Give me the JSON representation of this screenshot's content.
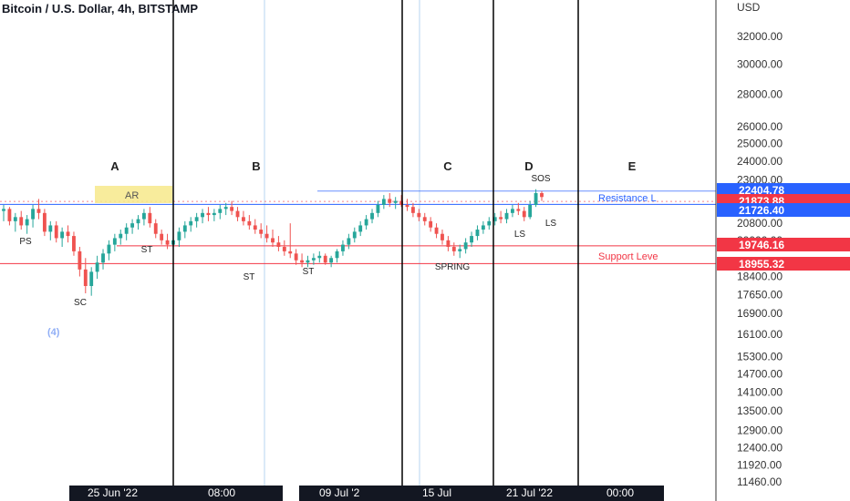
{
  "header": {
    "title": "Bitcoin / U.S. Dollar, 4h, BITSTAMP"
  },
  "colors": {
    "up": "#26a69a",
    "down": "#ef5350",
    "resistance": "#2962ff",
    "support": "#f23645",
    "ar_box": "#f7e98b",
    "label": "#222222",
    "price_text": "#333333"
  },
  "chart_data": {
    "type": "candlestick",
    "title": "Bitcoin / U.S. Dollar, 4h, BITSTAMP",
    "price_axis": {
      "unit_label": "USD",
      "scale": "log",
      "ticks": [
        "32000.00",
        "30000.00",
        "28000.00",
        "26000.00",
        "25000.00",
        "24000.00",
        "23000.00",
        "20800.00",
        "20000.00",
        "18400.00",
        "17650.00",
        "16900.00",
        "16100.00",
        "15300.00",
        "14700.00",
        "14100.00",
        "13500.00",
        "12900.00",
        "12400.00",
        "11920.00",
        "11460.00"
      ]
    },
    "time_axis": {
      "labels": [
        "25 Jun '22",
        "08:00",
        "09 Jul '2",
        "15 Jul",
        "21 Jul '22",
        "00:00"
      ]
    },
    "phases": [
      "A",
      "B",
      "C",
      "D",
      "E"
    ],
    "wyckoff_labels": [
      "PS",
      "SC",
      "AR",
      "ST",
      "ST",
      "ST",
      "SPRING",
      "LS",
      "LS",
      "SOS"
    ],
    "annotation": "(4)",
    "levels": [
      {
        "name": "Resistance L",
        "price": 21726.4
      },
      {
        "name": "Support Leve",
        "price": 18955.32
      }
    ],
    "price_tags": [
      {
        "value": "22404.78",
        "color": "#2962ff"
      },
      {
        "value": "21873.88",
        "color": "#f23645"
      },
      {
        "value": "21726.40",
        "color": "#2962ff"
      },
      {
        "value": "19746.16",
        "color": "#f23645"
      },
      {
        "value": "18955.32",
        "color": "#f23645"
      }
    ],
    "candles": [
      [
        21400,
        21700,
        20900,
        21500
      ],
      [
        21500,
        21600,
        20700,
        20900
      ],
      [
        20900,
        21300,
        20400,
        21100
      ],
      [
        21100,
        21400,
        20500,
        20700
      ],
      [
        20700,
        21200,
        20300,
        21000
      ],
      [
        21000,
        21700,
        20600,
        21500
      ],
      [
        21500,
        22000,
        21000,
        21300
      ],
      [
        21300,
        21500,
        20200,
        20400
      ],
      [
        20400,
        20900,
        20000,
        20700
      ],
      [
        20700,
        20900,
        19900,
        20100
      ],
      [
        20100,
        20600,
        19700,
        20400
      ],
      [
        20400,
        20700,
        19900,
        20200
      ],
      [
        20200,
        20400,
        19300,
        19500
      ],
      [
        19500,
        19700,
        18400,
        18700
      ],
      [
        18700,
        19200,
        17700,
        18000
      ],
      [
        18000,
        18800,
        17600,
        18600
      ],
      [
        18600,
        19300,
        18300,
        19000
      ],
      [
        19000,
        19600,
        18700,
        19400
      ],
      [
        19400,
        20000,
        19100,
        19800
      ],
      [
        19800,
        20300,
        19500,
        20100
      ],
      [
        20100,
        20500,
        19800,
        20300
      ],
      [
        20300,
        20800,
        20000,
        20600
      ],
      [
        20600,
        21000,
        20300,
        20800
      ],
      [
        20800,
        21200,
        20500,
        21000
      ],
      [
        21000,
        21500,
        20700,
        21300
      ],
      [
        21300,
        21600,
        20600,
        20800
      ],
      [
        20800,
        21000,
        20100,
        20300
      ],
      [
        20300,
        20500,
        19800,
        20000
      ],
      [
        20000,
        20300,
        19600,
        19800
      ],
      [
        19800,
        20200,
        19500,
        20000
      ],
      [
        20000,
        20600,
        19700,
        20400
      ],
      [
        20400,
        20900,
        20100,
        20700
      ],
      [
        20700,
        21100,
        20400,
        20900
      ],
      [
        20900,
        21300,
        20600,
        21100
      ],
      [
        21100,
        21500,
        20800,
        21300
      ],
      [
        21300,
        21600,
        20900,
        21200
      ],
      [
        21200,
        21500,
        20900,
        21300
      ],
      [
        21300,
        21700,
        21000,
        21500
      ],
      [
        21500,
        21800,
        21200,
        21600
      ],
      [
        21600,
        21900,
        21200,
        21400
      ],
      [
        21400,
        21600,
        20900,
        21100
      ],
      [
        21100,
        21400,
        20700,
        20900
      ],
      [
        20900,
        21200,
        20500,
        20700
      ],
      [
        20700,
        21000,
        20300,
        20500
      ],
      [
        20500,
        20800,
        20100,
        20300
      ],
      [
        20300,
        20700,
        19900,
        20100
      ],
      [
        20100,
        20500,
        19700,
        19900
      ],
      [
        19900,
        20200,
        19500,
        19700
      ],
      [
        19700,
        20000,
        19300,
        19500
      ],
      [
        19500,
        20800,
        19200,
        19400
      ],
      [
        19400,
        19600,
        18900,
        19100
      ],
      [
        19100,
        19400,
        18800,
        19000
      ],
      [
        19000,
        19300,
        18800,
        19100
      ],
      [
        19100,
        19400,
        18900,
        19200
      ],
      [
        19200,
        19500,
        19000,
        19300
      ],
      [
        19300,
        19400,
        18900,
        19000
      ],
      [
        19000,
        19300,
        18800,
        19200
      ],
      [
        19200,
        19600,
        19000,
        19500
      ],
      [
        19500,
        20000,
        19300,
        19800
      ],
      [
        19800,
        20300,
        19600,
        20100
      ],
      [
        20100,
        20600,
        19900,
        20400
      ],
      [
        20400,
        20900,
        20200,
        20700
      ],
      [
        20700,
        21200,
        20500,
        21000
      ],
      [
        21000,
        21500,
        20800,
        21300
      ],
      [
        21300,
        21900,
        21100,
        21700
      ],
      [
        21700,
        22200,
        21500,
        22000
      ],
      [
        22000,
        22300,
        21600,
        21800
      ],
      [
        21800,
        22100,
        21500,
        21900
      ],
      [
        21900,
        22200,
        21600,
        21700
      ],
      [
        21700,
        22000,
        21400,
        21600
      ],
      [
        21600,
        21800,
        21100,
        21300
      ],
      [
        21300,
        21500,
        20900,
        21100
      ],
      [
        21100,
        21300,
        20700,
        20900
      ],
      [
        20900,
        21100,
        20400,
        20600
      ],
      [
        20600,
        20800,
        20100,
        20300
      ],
      [
        20300,
        20500,
        19800,
        20000
      ],
      [
        20000,
        20200,
        19500,
        19700
      ],
      [
        19700,
        19900,
        19300,
        19500
      ],
      [
        19500,
        19800,
        19200,
        19600
      ],
      [
        19600,
        20100,
        19400,
        19900
      ],
      [
        19900,
        20400,
        19700,
        20200
      ],
      [
        20200,
        20700,
        20000,
        20500
      ],
      [
        20500,
        20900,
        20300,
        20700
      ],
      [
        20700,
        21100,
        20500,
        20900
      ],
      [
        20900,
        21300,
        20700,
        21100
      ],
      [
        21100,
        21400,
        20800,
        21000
      ],
      [
        21000,
        21500,
        20800,
        21300
      ],
      [
        21300,
        21700,
        21100,
        21500
      ],
      [
        21500,
        21800,
        21200,
        21400
      ],
      [
        21400,
        21600,
        20900,
        21100
      ],
      [
        21100,
        21900,
        21000,
        21700
      ],
      [
        21700,
        22500,
        21600,
        22300
      ],
      [
        22300,
        22400,
        21900,
        22100
      ]
    ]
  }
}
